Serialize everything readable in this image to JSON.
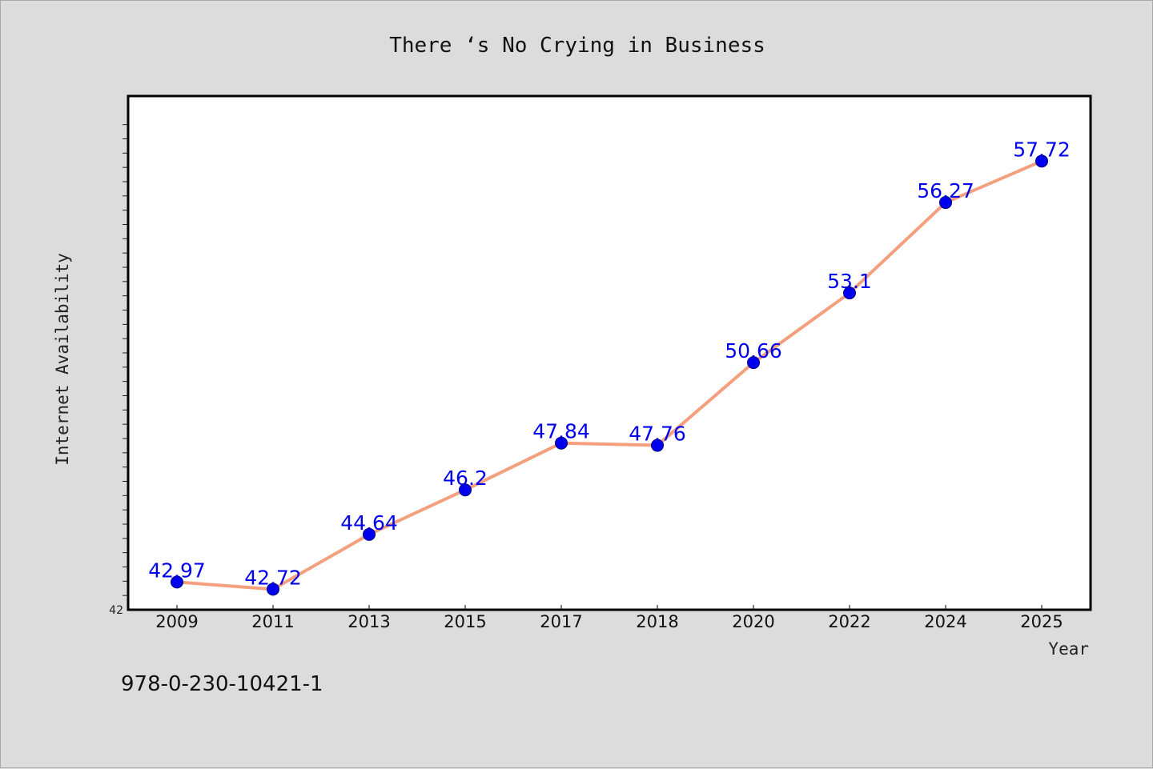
{
  "chart_data": {
    "type": "line",
    "title": "There ‘s No Crying in Business",
    "xlabel": "Year",
    "ylabel": "Internet Availability",
    "categories": [
      "2009",
      "2011",
      "2013",
      "2015",
      "2017",
      "2018",
      "2020",
      "2022",
      "2024",
      "2025"
    ],
    "series": [
      {
        "values": [
          42.97,
          42.72,
          44.64,
          46.2,
          47.84,
          47.76,
          50.66,
          53.1,
          56.27,
          57.72
        ],
        "data_labels": [
          "42.97",
          "42.72",
          "44.64",
          "46.2",
          "47.84",
          "47.76",
          "50.66",
          "53.1",
          "56.27",
          "57.72"
        ]
      }
    ],
    "ylim": [
      42,
      60
    ],
    "ytick_min_label": "42",
    "grid": false,
    "legend": "none",
    "colors": {
      "line": "#f4a07e",
      "marker": "#0000ee",
      "data_label": "#0000ee",
      "background": "#dcdcdc",
      "plot_background": "#ffffff"
    }
  },
  "footer": {
    "code": "978-0-230-10421-1"
  }
}
